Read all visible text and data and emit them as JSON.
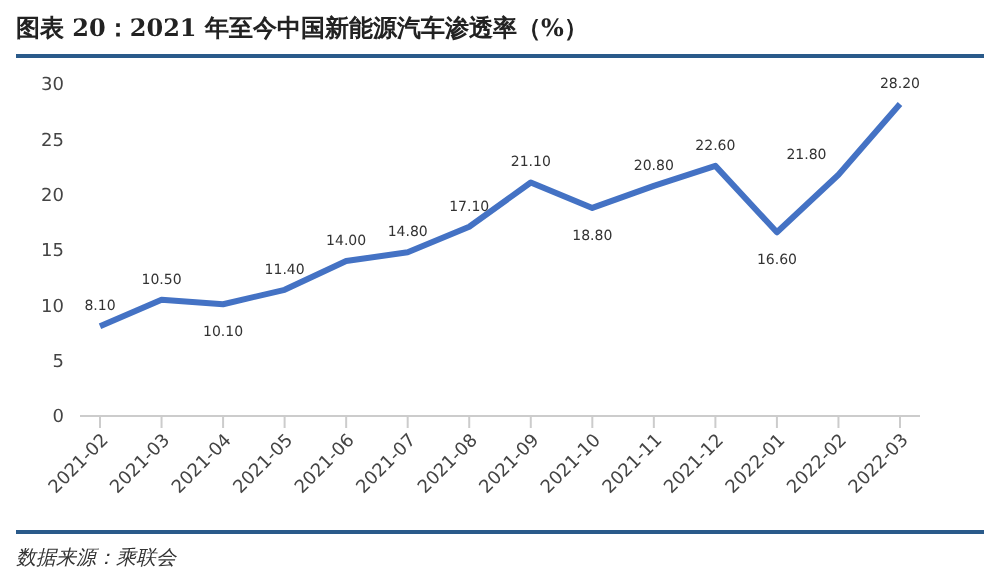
{
  "chart_data": {
    "type": "line",
    "title": "图表 20：2021 年至今中国新能源汽车渗透率（%）",
    "categories": [
      "2021-02",
      "2021-03",
      "2021-04",
      "2021-05",
      "2021-06",
      "2021-07",
      "2021-08",
      "2021-09",
      "2021-10",
      "2021-11",
      "2021-12",
      "2022-01",
      "2022-02",
      "2022-03"
    ],
    "series": [
      {
        "color": "#4472c4",
        "values": [
          8.1,
          10.5,
          10.1,
          11.4,
          14.0,
          14.8,
          17.1,
          21.1,
          18.8,
          20.8,
          22.6,
          16.6,
          21.8,
          28.2
        ],
        "value_labels": [
          "8.10",
          "10.50",
          "10.10",
          "11.40",
          "14.00",
          "14.80",
          "17.10",
          "21.10",
          "18.80",
          "20.80",
          "22.60",
          "16.60",
          "21.80",
          "28.20"
        ]
      }
    ],
    "ylim": [
      0,
      30
    ],
    "yticks": [
      0,
      5,
      10,
      15,
      20,
      25,
      30
    ],
    "grid": false,
    "legend": false,
    "marker": "none",
    "line_style": "solid",
    "annotations": [
      "数据来源：乘联会"
    ]
  }
}
